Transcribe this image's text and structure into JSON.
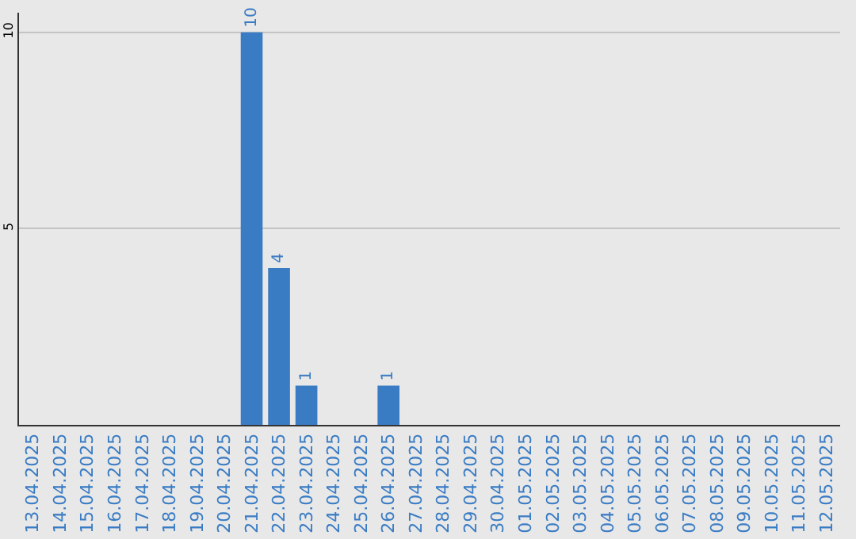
{
  "chart_data": {
    "type": "bar",
    "categories": [
      "13.04.2025",
      "14.04.2025",
      "15.04.2025",
      "16.04.2025",
      "17.04.2025",
      "18.04.2025",
      "19.04.2025",
      "20.04.2025",
      "21.04.2025",
      "22.04.2025",
      "23.04.2025",
      "24.04.2025",
      "25.04.2025",
      "26.04.2025",
      "27.04.2025",
      "28.04.2025",
      "29.04.2025",
      "30.04.2025",
      "01.05.2025",
      "02.05.2025",
      "03.05.2025",
      "04.05.2025",
      "05.05.2025",
      "06.05.2025",
      "07.05.2025",
      "08.05.2025",
      "09.05.2025",
      "10.05.2025",
      "11.05.2025",
      "12.05.2025"
    ],
    "values": [
      0,
      0,
      0,
      0,
      0,
      0,
      0,
      0,
      10,
      4,
      1,
      0,
      0,
      1,
      0,
      0,
      0,
      0,
      0,
      0,
      0,
      0,
      0,
      0,
      0,
      0,
      0,
      0,
      0,
      0
    ],
    "value_labels": [
      null,
      null,
      null,
      null,
      null,
      null,
      null,
      null,
      "10",
      "4",
      "1",
      null,
      null,
      "1",
      null,
      null,
      null,
      null,
      null,
      null,
      null,
      null,
      null,
      null,
      null,
      null,
      null,
      null,
      null,
      null
    ],
    "color": "#3a7cc4",
    "ylim": [
      0,
      10.5
    ],
    "yticks": [
      5,
      10
    ],
    "grid": "y"
  }
}
